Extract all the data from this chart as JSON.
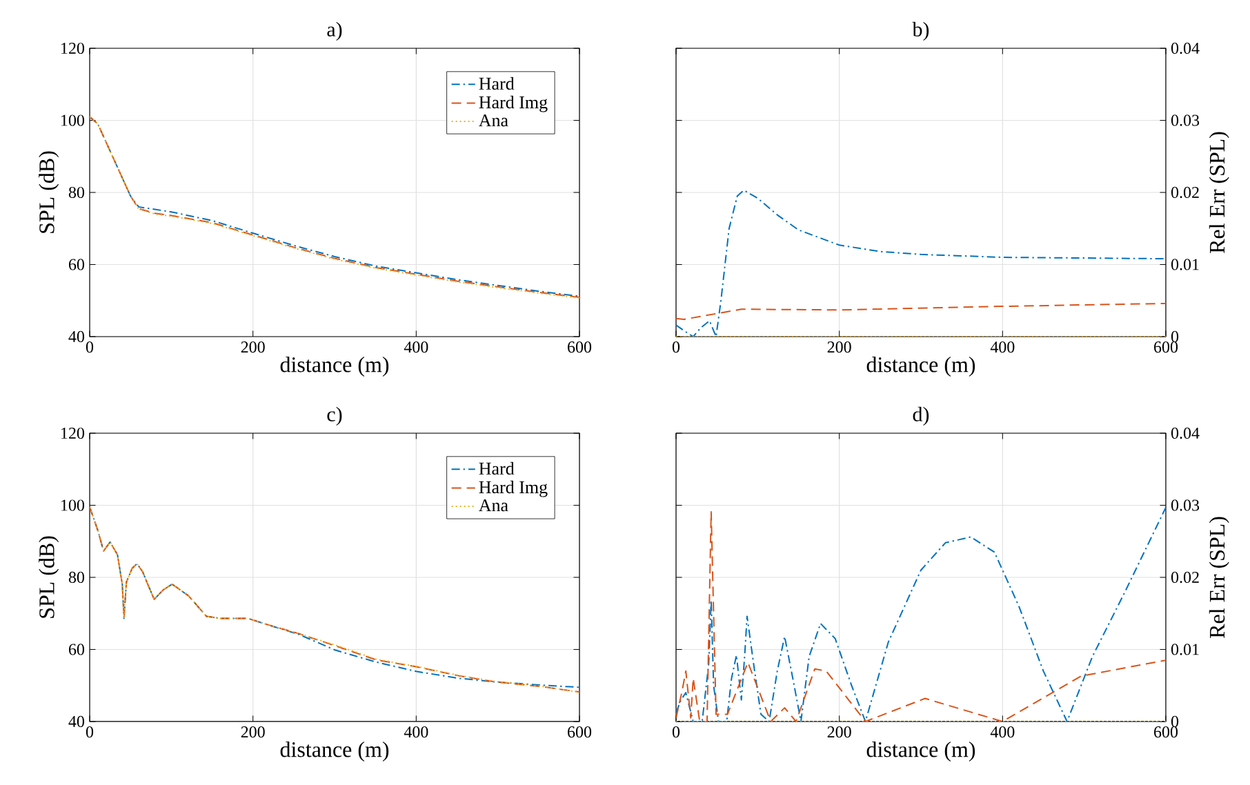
{
  "chart_data": [
    {
      "type": "line",
      "title": "a)",
      "xlabel": "distance (m)",
      "ylabel": "SPL (dB)",
      "xlim": [
        0,
        600
      ],
      "xticks": [
        0,
        200,
        400,
        600
      ],
      "ylim": [
        40,
        120
      ],
      "yticks": [
        40,
        60,
        80,
        100,
        120
      ],
      "grid": true,
      "legend": "top right",
      "series": [
        {
          "name": "Hard",
          "color": "#0072bd",
          "line_style": "dashdot",
          "x": [
            0,
            10,
            20,
            30,
            40,
            50,
            60,
            80,
            100,
            150,
            200,
            250,
            300,
            350,
            400,
            450,
            500,
            550,
            600
          ],
          "values": [
            101,
            99,
            94,
            89,
            84,
            79,
            76,
            75.3,
            74.6,
            72.2,
            68.7,
            65.3,
            62.2,
            59.6,
            57.7,
            55.8,
            54.2,
            52.6,
            51.2
          ]
        },
        {
          "name": "Hard Img",
          "color": "#d95319",
          "line_style": "dashed",
          "x": [
            0,
            10,
            20,
            30,
            40,
            50,
            60,
            80,
            100,
            150,
            200,
            250,
            300,
            350,
            400,
            450,
            500,
            550,
            600
          ],
          "values": [
            101,
            99,
            94,
            89,
            84,
            79,
            75.5,
            74.2,
            73.6,
            71.6,
            68.2,
            64.8,
            61.7,
            59.2,
            57.3,
            55.4,
            53.8,
            52.3,
            50.9
          ]
        },
        {
          "name": "Ana",
          "color": "#edb120",
          "line_style": "dotted",
          "x": [
            0,
            10,
            20,
            30,
            40,
            50,
            60,
            80,
            100,
            150,
            200,
            250,
            300,
            350,
            400,
            450,
            500,
            550,
            600
          ],
          "values": [
            101,
            99,
            94,
            89,
            84,
            79,
            75.4,
            74.0,
            73.4,
            71.4,
            68.0,
            64.6,
            61.5,
            59.0,
            57.1,
            55.2,
            53.6,
            52.1,
            50.7
          ]
        }
      ]
    },
    {
      "type": "line",
      "title": "b)",
      "xlabel": "distance (m)",
      "y2label": "Rel Err (SPL)",
      "xlim": [
        0,
        600
      ],
      "xticks": [
        0,
        200,
        400,
        600
      ],
      "y2lim": [
        0,
        0.04
      ],
      "y2ticks": [
        0,
        0.01,
        0.02,
        0.03,
        0.04
      ],
      "grid": true,
      "series": [
        {
          "color": "#0072bd",
          "line_style": "dashdot",
          "axis": "y2",
          "x": [
            0,
            10,
            21,
            30,
            41,
            49,
            55,
            65,
            75,
            83,
            100,
            125,
            150,
            200,
            250,
            300,
            400,
            500,
            600
          ],
          "values": [
            0.0016,
            0.0008,
            0,
            0.0012,
            0.0022,
            0,
            0.005,
            0.015,
            0.0195,
            0.0203,
            0.0192,
            0.0168,
            0.0148,
            0.0127,
            0.0118,
            0.0114,
            0.011,
            0.0109,
            0.0108
          ]
        },
        {
          "color": "#d95319",
          "line_style": "dashed",
          "axis": "y2",
          "x": [
            0,
            10,
            30,
            60,
            80,
            200,
            400,
            600
          ],
          "values": [
            0.0025,
            0.0024,
            0.0028,
            0.0034,
            0.0038,
            0.0037,
            0.0042,
            0.0046
          ]
        },
        {
          "color": "#edb120",
          "line_style": "dotted",
          "axis": "y2",
          "x": [
            0,
            600
          ],
          "values": [
            0,
            0
          ]
        }
      ]
    },
    {
      "type": "line",
      "title": "c)",
      "xlabel": "distance (m)",
      "ylabel": "SPL (dB)",
      "xlim": [
        0,
        600
      ],
      "xticks": [
        0,
        200,
        400,
        600
      ],
      "ylim": [
        40,
        120
      ],
      "yticks": [
        40,
        60,
        80,
        100,
        120
      ],
      "grid": true,
      "legend": "top right",
      "series": [
        {
          "name": "Hard",
          "color": "#0072bd",
          "line_style": "dashdot",
          "x": [
            0,
            10,
            17,
            25,
            34,
            40,
            42,
            45,
            52,
            58,
            65,
            70,
            79,
            90,
            101,
            121,
            143,
            160,
            194,
            216,
            256,
            301,
            351,
            400,
            452,
            497,
            553,
            600
          ],
          "values": [
            99.5,
            93,
            87.3,
            89.8,
            86.3,
            78,
            68.6,
            78.7,
            82.5,
            83.8,
            81.5,
            78.7,
            73.9,
            76.5,
            78.1,
            74.9,
            69.2,
            68.6,
            68.6,
            67,
            64.2,
            59.8,
            56.5,
            53.9,
            52.0,
            51.0,
            50.1,
            49.5
          ]
        },
        {
          "name": "Hard Img",
          "color": "#d95319",
          "line_style": "dashed",
          "x": [
            0,
            10,
            17,
            25,
            34,
            40,
            42,
            45,
            52,
            58,
            65,
            70,
            79,
            90,
            101,
            121,
            143,
            160,
            194,
            216,
            256,
            301,
            351,
            400,
            452,
            497,
            553,
            600
          ],
          "values": [
            99.5,
            93,
            87.3,
            89.8,
            86.3,
            78,
            68.6,
            78.7,
            82.5,
            83.8,
            81.5,
            78.7,
            73.9,
            76.5,
            78.1,
            74.9,
            69.2,
            68.6,
            68.6,
            67,
            64.4,
            61.0,
            57.1,
            55.2,
            52.7,
            51.0,
            49.7,
            48.2
          ]
        },
        {
          "name": "Ana",
          "color": "#edb120",
          "line_style": "dotted",
          "x": [
            0,
            10,
            17,
            25,
            34,
            40,
            42,
            45,
            52,
            58,
            65,
            70,
            79,
            90,
            101,
            121,
            143,
            160,
            194,
            216,
            256,
            301,
            351,
            400,
            452,
            497,
            553,
            600
          ],
          "values": [
            99.5,
            93,
            87.3,
            89.8,
            86.3,
            78,
            68.6,
            78.7,
            82.5,
            83.8,
            81.5,
            78.7,
            73.9,
            76.5,
            78.1,
            74.9,
            69.2,
            68.6,
            68.6,
            67,
            64.4,
            61.2,
            57.3,
            55.3,
            52.8,
            51.1,
            49.8,
            48.1
          ]
        }
      ]
    },
    {
      "type": "line",
      "title": "d)",
      "xlabel": "distance (m)",
      "y2label": "Rel Err (SPL)",
      "xlim": [
        0,
        600
      ],
      "xticks": [
        0,
        200,
        400,
        600
      ],
      "y2lim": [
        0,
        0.04
      ],
      "y2ticks": [
        0,
        0.01,
        0.02,
        0.03,
        0.04
      ],
      "grid": true,
      "series": [
        {
          "color": "#0072bd",
          "line_style": "dashdot",
          "axis": "y2",
          "x": [
            0,
            6,
            12,
            21,
            32,
            40,
            43,
            46,
            52,
            62,
            68,
            74,
            80,
            84,
            87,
            95,
            104,
            114,
            124,
            133,
            143,
            153,
            163,
            177,
            195,
            215,
            232,
            260,
            300,
            330,
            361,
            390,
            420,
            450,
            479,
            510,
            550,
            600
          ],
          "values": [
            0.0012,
            0.003,
            0.004,
            0,
            0,
            0.008,
            0.0168,
            0.005,
            0,
            0,
            0.006,
            0.0092,
            0.003,
            0.009,
            0.0146,
            0.008,
            0.001,
            0,
            0.007,
            0.0118,
            0.006,
            0,
            0.009,
            0.0136,
            0.0115,
            0.005,
            0,
            0.011,
            0.021,
            0.0248,
            0.0256,
            0.0235,
            0.016,
            0.007,
            0,
            0.009,
            0.018,
            0.0297
          ]
        },
        {
          "color": "#d95319",
          "line_style": "dashed",
          "axis": "y2",
          "x": [
            0,
            7,
            12,
            18,
            21,
            29,
            38,
            43,
            49,
            63,
            88,
            116,
            133,
            147,
            170,
            184,
            232,
            305,
            400,
            496,
            600
          ],
          "values": [
            0.0005,
            0.004,
            0.007,
            0.0005,
            0.006,
            0,
            0,
            0.0291,
            0.001,
            0.001,
            0.0082,
            0,
            0.0019,
            0,
            0.0073,
            0.007,
            0,
            0.0032,
            0,
            0.0063,
            0.0085
          ]
        },
        {
          "color": "#edb120",
          "line_style": "dotted",
          "axis": "y2",
          "x": [
            0,
            600
          ],
          "values": [
            0,
            0
          ]
        }
      ]
    }
  ]
}
